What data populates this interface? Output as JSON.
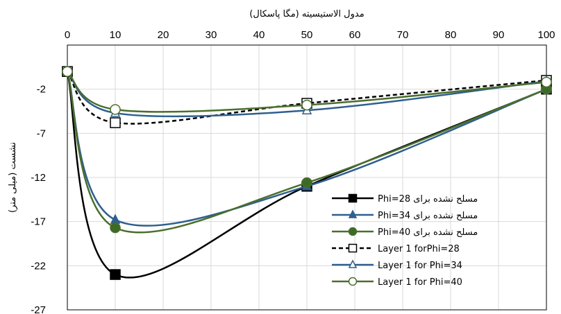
{
  "chart_data": {
    "type": "line",
    "xlabel": "مدول الاستیسیته (مگا پاسکال)",
    "ylabel": "نشست (میلی متر)",
    "xlim": [
      0,
      100
    ],
    "ylim": [
      -27,
      3
    ],
    "x_ticks": [
      "0",
      "10",
      "20",
      "30",
      "40",
      "50",
      "60",
      "70",
      "80",
      "90",
      "100"
    ],
    "y_ticks": [
      "-2",
      "-7",
      "-12",
      "-17",
      "-22",
      "-27"
    ],
    "x_axis_position": "top",
    "grid": true,
    "legend_position": "bottom-right",
    "x": [
      0,
      10,
      50,
      100
    ],
    "series": [
      {
        "name": "مسلح نشده برای  Phi=28",
        "values": [
          0,
          -23,
          -13,
          -2
        ],
        "color": "#000000",
        "marker": "square",
        "marker_fill": "#000000",
        "dashed": false
      },
      {
        "name": "مسلح نشده برای  Phi=34",
        "values": [
          0,
          -16.8,
          -13,
          -2
        ],
        "color": "#2e5f8f",
        "marker": "triangle",
        "marker_fill": "#2e5f8f",
        "dashed": false
      },
      {
        "name": "مسلح نشده برای  Phi=40",
        "values": [
          0,
          -17.7,
          -12.6,
          -2
        ],
        "color": "#4a6e2c",
        "marker": "circle",
        "marker_fill": "#3d6b27",
        "dashed": false
      },
      {
        "name": "Layer 1 forPhi=28",
        "values": [
          0,
          -5.8,
          -3.6,
          -1
        ],
        "color": "#000000",
        "marker": "square",
        "marker_fill": "#ffffff",
        "dashed": true
      },
      {
        "name": "Layer 1 for Phi=34",
        "values": [
          0,
          -4.7,
          -4.4,
          -1.1
        ],
        "color": "#2e5f8f",
        "marker": "triangle",
        "marker_fill": "#ffffff",
        "dashed": false
      },
      {
        "name": "Layer 1 for Phi=40",
        "values": [
          0,
          -4.3,
          -3.8,
          -1.2
        ],
        "color": "#4a6e2c",
        "marker": "circle",
        "marker_fill": "#ffffff",
        "dashed": false
      }
    ]
  }
}
